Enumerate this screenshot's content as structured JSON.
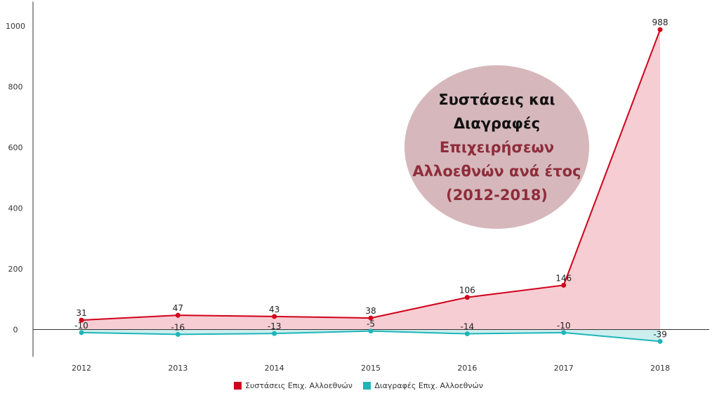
{
  "chart_data": {
    "type": "area",
    "categories": [
      "2012",
      "2013",
      "2014",
      "2015",
      "2016",
      "2017",
      "2018"
    ],
    "series": [
      {
        "name": "Συστάσεις Επιχ. Αλλοεθνών",
        "values": [
          31,
          47,
          43,
          38,
          106,
          146,
          988
        ],
        "color": "#d0021b",
        "fill": "#f6cdd3"
      },
      {
        "name": "Διαγραφές Επιχ. Αλλοεθνών",
        "values": [
          -10,
          -16,
          -13,
          -5,
          -14,
          -10,
          -39
        ],
        "color": "#1fb5b8",
        "fill": "#cdeeee"
      }
    ],
    "yticks": [
      0,
      200,
      400,
      600,
      800,
      1000
    ],
    "ylim": [
      -90,
      1080
    ],
    "grid": false,
    "legend_position": "bottom-center",
    "title_lines": [
      {
        "text": "Συστάσεις και",
        "style": "dark"
      },
      {
        "text": "Διαγραφές",
        "style": "dark"
      },
      {
        "text": "Επιχειρήσεων",
        "style": "accent"
      },
      {
        "text": "Αλλοεθνών ανά έτος",
        "style": "accent"
      },
      {
        "text": "(2012-2018)",
        "style": "accent"
      }
    ],
    "colors": {
      "title_dark": "#111111",
      "title_accent": "#8e2d3b",
      "title_bg": "#d6b8bc"
    }
  }
}
